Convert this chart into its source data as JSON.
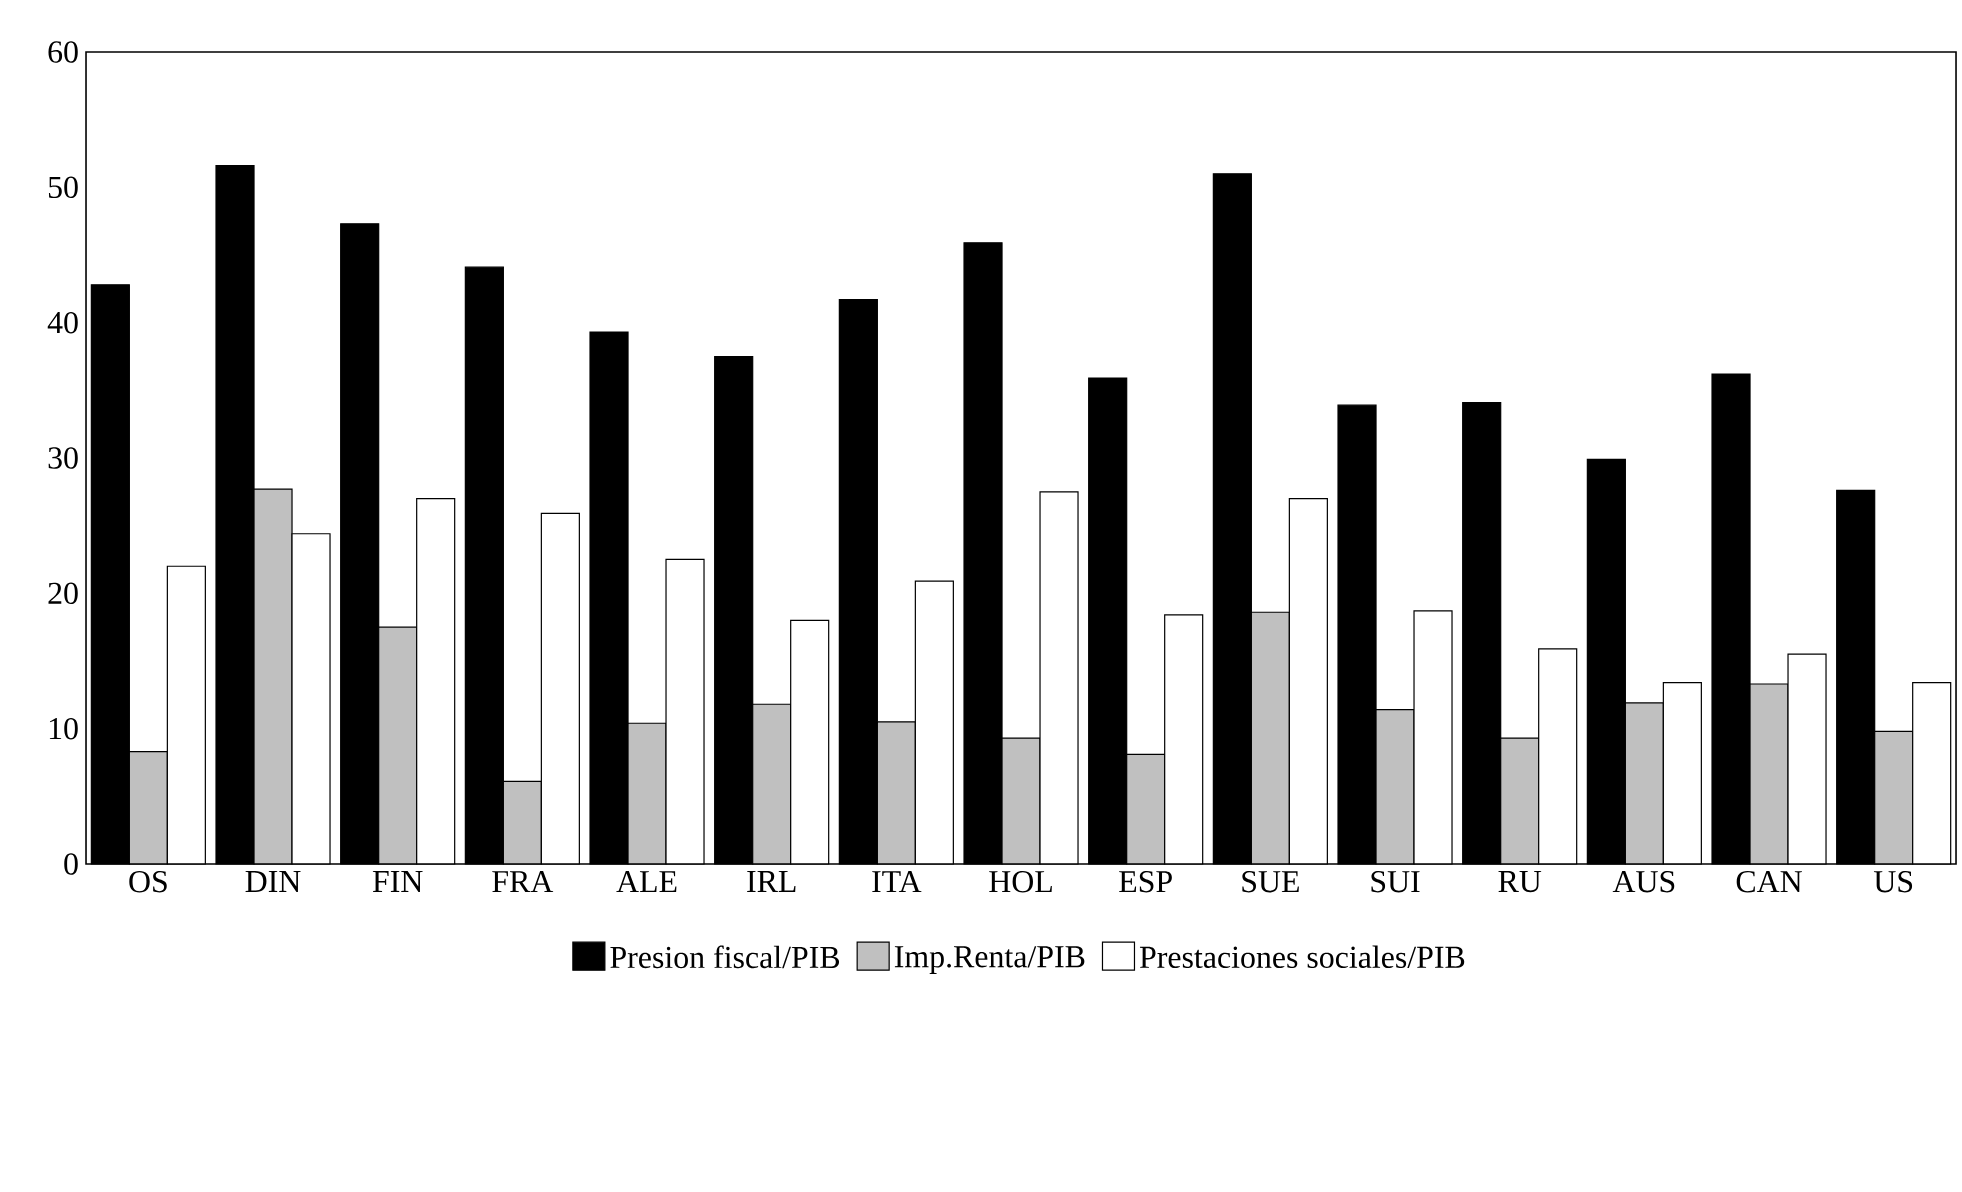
{
  "chart_data": {
    "type": "bar",
    "categories": [
      "OS",
      "DIN",
      "FIN",
      "FRA",
      "ALE",
      "IRL",
      "ITA",
      "HOL",
      "ESP",
      "SUE",
      "SUI",
      "RU",
      "AUS",
      "CAN",
      "US"
    ],
    "series": [
      {
        "name": "Presion fiscal/PIB",
        "color": "#000000",
        "values": [
          42.8,
          51.6,
          47.3,
          44.1,
          39.3,
          37.5,
          41.7,
          45.9,
          35.9,
          51.0,
          33.9,
          34.1,
          29.9,
          36.2,
          27.6
        ]
      },
      {
        "name": "Imp.Renta/PIB",
        "color": "#c0c0c0",
        "values": [
          8.3,
          27.7,
          17.5,
          6.1,
          10.4,
          11.8,
          10.5,
          9.3,
          8.1,
          18.6,
          11.4,
          9.3,
          11.9,
          13.3,
          9.8
        ]
      },
      {
        "name": "Prestaciones sociales/PIB",
        "color": "#ffffff",
        "values": [
          22.0,
          24.4,
          27.0,
          25.9,
          22.5,
          18.0,
          20.9,
          27.5,
          18.4,
          27.0,
          18.7,
          15.9,
          13.4,
          15.5,
          13.4
        ]
      }
    ],
    "ylim": [
      0,
      60
    ],
    "yticks": [
      0,
      10,
      20,
      30,
      40,
      50,
      60
    ],
    "grid": false,
    "legend": "bottom"
  }
}
